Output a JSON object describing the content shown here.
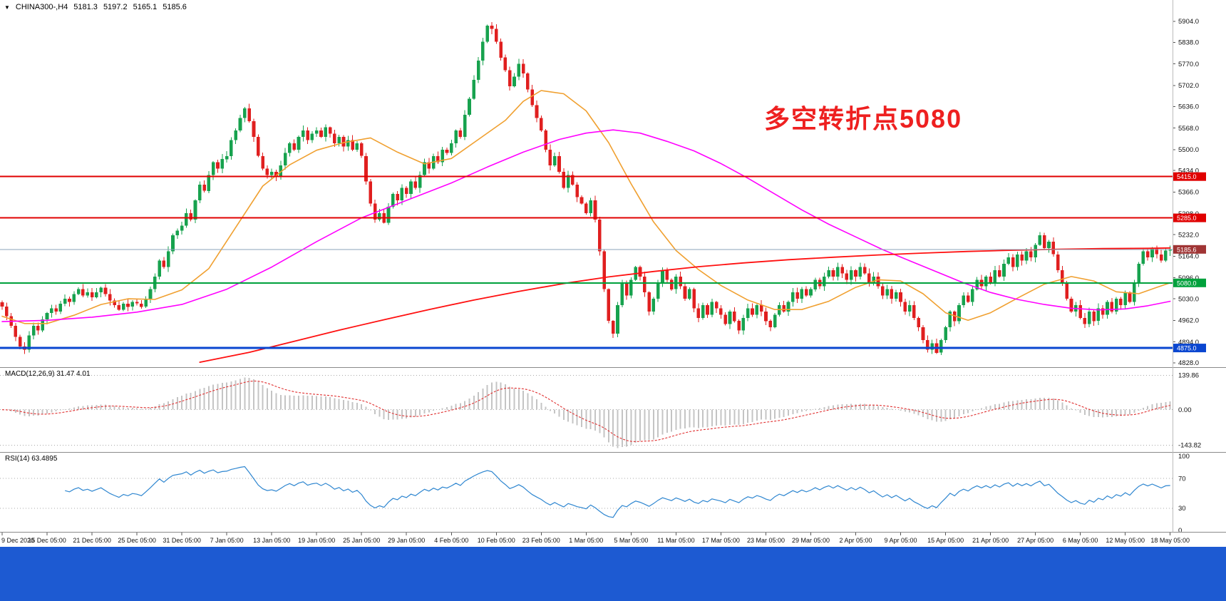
{
  "header": {
    "dropdown_icon": "▼",
    "symbol": "CHINA300-,H4",
    "open": "5181.3",
    "high": "5197.2",
    "low": "5165.1",
    "close": "5185.6"
  },
  "annotation": {
    "text": "多空转折点5080",
    "color": "#ee2020"
  },
  "colors": {
    "up": "#17a24e",
    "down": "#e01f1f",
    "macd_hist": "#c4c4c4",
    "macd_signal": "#e03030",
    "rsi": "#2e86d0",
    "bid": "#8ba3b8",
    "bottom_bar": "#1d5ad2",
    "axis_text": "#111111",
    "separator": "#8a8a8a"
  },
  "chart_data": {
    "type": "candlestick",
    "symbol": "CHINA300-",
    "timeframe": "H4",
    "bars_per_label": 10,
    "x_labels": [
      "9 Dec 2020",
      "15 Dec 05:00",
      "21 Dec 05:00",
      "25 Dec 05:00",
      "31 Dec 05:00",
      "7 Jan 05:00",
      "13 Jan 05:00",
      "19 Jan 05:00",
      "25 Jan 05:00",
      "29 Jan 05:00",
      "4 Feb 05:00",
      "10 Feb 05:00",
      "23 Feb 05:00",
      "1 Mar 05:00",
      "5 Mar 05:00",
      "11 Mar 05:00",
      "17 Mar 05:00",
      "23 Mar 05:00",
      "29 Mar 05:00",
      "2 Apr 05:00",
      "9 Apr 05:00",
      "15 Apr 05:00",
      "21 Apr 05:00",
      "27 Apr 05:00",
      "6 May 05:00",
      "12 May 05:00",
      "18 May 05:00"
    ],
    "y_ticks": [
      5904,
      5838,
      5770,
      5702,
      5636,
      5568,
      5500,
      5434,
      5366,
      5298,
      5232,
      5164,
      5096,
      5030,
      4962,
      4894,
      4828
    ],
    "closes": [
      5005,
      4975,
      4945,
      4910,
      4880,
      4870,
      4915,
      4945,
      4930,
      4965,
      4985,
      5000,
      4990,
      5015,
      5030,
      5020,
      5045,
      5060,
      5040,
      5050,
      5035,
      5050,
      5065,
      5045,
      5025,
      5010,
      4995,
      5015,
      5005,
      5020,
      5015,
      5005,
      5030,
      5060,
      5100,
      5150,
      5130,
      5180,
      5230,
      5245,
      5260,
      5300,
      5280,
      5340,
      5390,
      5370,
      5420,
      5460,
      5440,
      5470,
      5480,
      5530,
      5560,
      5600,
      5630,
      5590,
      5540,
      5480,
      5440,
      5420,
      5430,
      5415,
      5450,
      5490,
      5520,
      5500,
      5540,
      5560,
      5530,
      5550,
      5560,
      5540,
      5570,
      5550,
      5520,
      5540,
      5510,
      5530,
      5500,
      5520,
      5480,
      5400,
      5330,
      5280,
      5300,
      5270,
      5320,
      5360,
      5340,
      5380,
      5360,
      5400,
      5380,
      5420,
      5460,
      5440,
      5480,
      5460,
      5500,
      5490,
      5520,
      5560,
      5540,
      5610,
      5660,
      5720,
      5780,
      5840,
      5890,
      5880,
      5840,
      5790,
      5750,
      5700,
      5730,
      5770,
      5740,
      5690,
      5640,
      5600,
      5560,
      5500,
      5450,
      5480,
      5430,
      5380,
      5420,
      5390,
      5350,
      5330,
      5300,
      5340,
      5280,
      5180,
      5060,
      4960,
      4920,
      5010,
      5080,
      5040,
      5090,
      5130,
      5100,
      5050,
      4990,
      5030,
      5080,
      5120,
      5090,
      5060,
      5100,
      5070,
      5030,
      5060,
      5000,
      4970,
      5010,
      4980,
      5020,
      5000,
      4980,
      4950,
      4990,
      4960,
      4930,
      4970,
      5000,
      4980,
      5010,
      4990,
      4960,
      4940,
      4980,
      5010,
      4990,
      5020,
      5050,
      5030,
      5060,
      5040,
      5060,
      5090,
      5070,
      5100,
      5120,
      5100,
      5130,
      5110,
      5090,
      5120,
      5100,
      5130,
      5110,
      5080,
      5100,
      5070,
      5040,
      5060,
      5030,
      5050,
      5020,
      4990,
      5010,
      4970,
      4940,
      4900,
      4870,
      4890,
      4860,
      4900,
      4940,
      4990,
      4960,
      5010,
      5040,
      5020,
      5060,
      5090,
      5070,
      5100,
      5080,
      5120,
      5100,
      5140,
      5160,
      5130,
      5170,
      5150,
      5180,
      5160,
      5200,
      5230,
      5190,
      5210,
      5170,
      5120,
      5080,
      5030,
      4990,
      5010,
      4970,
      4950,
      4990,
      4960,
      5000,
      4980,
      5020,
      4990,
      5030,
      5010,
      5050,
      5020,
      5080,
      5140,
      5180,
      5160,
      5190,
      5170,
      5150,
      5181.3,
      5185.6
    ],
    "last_candle": [
      5181.3,
      5197.2,
      5165.1,
      5185.6
    ],
    "h_lines": [
      {
        "price": 5415.0,
        "label": "5415.0",
        "color": "#e00000",
        "width": 2
      },
      {
        "price": 5285.0,
        "label": "5285.0",
        "color": "#e00000",
        "width": 2
      },
      {
        "price": 5080.0,
        "label": "5080.0",
        "color": "#00a13c",
        "width": 2
      },
      {
        "price": 4875.0,
        "label": "4875.0",
        "color": "#0a46d0",
        "width": 3
      }
    ],
    "bid_line": {
      "price": 5185.6,
      "label": "5185.6",
      "badge_color": "#a03535"
    },
    "moving_averages": [
      {
        "name": "ma-fast-orange",
        "color": "#f0a030",
        "width": 1.6,
        "points": [
          [
            0,
            4975
          ],
          [
            5,
            4952
          ],
          [
            10,
            4952
          ],
          [
            16,
            4978
          ],
          [
            22,
            5012
          ],
          [
            28,
            5030
          ],
          [
            34,
            5028
          ],
          [
            40,
            5058
          ],
          [
            46,
            5125
          ],
          [
            52,
            5255
          ],
          [
            58,
            5385
          ],
          [
            64,
            5452
          ],
          [
            70,
            5498
          ],
          [
            76,
            5522
          ],
          [
            82,
            5537
          ],
          [
            88,
            5492
          ],
          [
            94,
            5455
          ],
          [
            100,
            5472
          ],
          [
            106,
            5532
          ],
          [
            112,
            5592
          ],
          [
            116,
            5652
          ],
          [
            120,
            5686
          ],
          [
            125,
            5676
          ],
          [
            130,
            5622
          ],
          [
            135,
            5522
          ],
          [
            140,
            5392
          ],
          [
            145,
            5272
          ],
          [
            150,
            5182
          ],
          [
            155,
            5122
          ],
          [
            160,
            5072
          ],
          [
            166,
            5026
          ],
          [
            172,
            4996
          ],
          [
            178,
            4996
          ],
          [
            184,
            5022
          ],
          [
            190,
            5066
          ],
          [
            195,
            5090
          ],
          [
            200,
            5086
          ],
          [
            205,
            5046
          ],
          [
            210,
            4986
          ],
          [
            215,
            4962
          ],
          [
            220,
            4986
          ],
          [
            226,
            5032
          ],
          [
            232,
            5076
          ],
          [
            238,
            5100
          ],
          [
            243,
            5086
          ],
          [
            248,
            5052
          ],
          [
            253,
            5046
          ],
          [
            257,
            5066
          ],
          [
            260,
            5080
          ]
        ]
      },
      {
        "name": "ma-mid-magenta",
        "color": "#ff00ff",
        "width": 1.6,
        "points": [
          [
            0,
            4958
          ],
          [
            10,
            4962
          ],
          [
            20,
            4972
          ],
          [
            30,
            4988
          ],
          [
            40,
            5012
          ],
          [
            50,
            5060
          ],
          [
            60,
            5130
          ],
          [
            70,
            5210
          ],
          [
            80,
            5285
          ],
          [
            90,
            5340
          ],
          [
            100,
            5395
          ],
          [
            108,
            5445
          ],
          [
            116,
            5492
          ],
          [
            124,
            5532
          ],
          [
            130,
            5552
          ],
          [
            136,
            5562
          ],
          [
            142,
            5552
          ],
          [
            148,
            5526
          ],
          [
            154,
            5496
          ],
          [
            160,
            5456
          ],
          [
            166,
            5410
          ],
          [
            172,
            5360
          ],
          [
            178,
            5310
          ],
          [
            184,
            5265
          ],
          [
            190,
            5225
          ],
          [
            196,
            5185
          ],
          [
            202,
            5150
          ],
          [
            208,
            5115
          ],
          [
            214,
            5080
          ],
          [
            220,
            5050
          ],
          [
            226,
            5028
          ],
          [
            232,
            5012
          ],
          [
            238,
            5000
          ],
          [
            244,
            4995
          ],
          [
            250,
            4998
          ],
          [
            255,
            5008
          ],
          [
            260,
            5022
          ]
        ]
      },
      {
        "name": "ma-slow-red",
        "color": "#ff1010",
        "width": 1.8,
        "points": [
          [
            44,
            4830
          ],
          [
            55,
            4861
          ],
          [
            65,
            4896
          ],
          [
            75,
            4931
          ],
          [
            85,
            4964
          ],
          [
            95,
            4996
          ],
          [
            105,
            5026
          ],
          [
            115,
            5053
          ],
          [
            125,
            5078
          ],
          [
            135,
            5099
          ],
          [
            145,
            5116
          ],
          [
            155,
            5131
          ],
          [
            165,
            5143
          ],
          [
            175,
            5153
          ],
          [
            185,
            5161
          ],
          [
            195,
            5168
          ],
          [
            205,
            5174
          ],
          [
            215,
            5179
          ],
          [
            225,
            5183
          ],
          [
            235,
            5186
          ],
          [
            245,
            5188
          ],
          [
            255,
            5189
          ],
          [
            260,
            5190
          ]
        ]
      }
    ],
    "macd": {
      "label": "MACD(12,26,9) 31.47 4.01",
      "params": [
        12,
        26,
        9
      ],
      "scale_ticks": [
        "139.86",
        "0.00",
        "-143.82"
      ],
      "scale_values": [
        139.86,
        0,
        -143.82
      ]
    },
    "rsi": {
      "label": "RSI(14) 63.4895",
      "period": 14,
      "scale_ticks": [
        "100",
        "70",
        "30",
        "0"
      ],
      "scale_values": [
        100,
        70,
        30,
        0
      ],
      "levels": [
        70,
        30
      ]
    }
  }
}
